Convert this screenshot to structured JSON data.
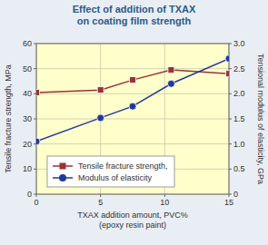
{
  "chart_data": {
    "type": "line",
    "title": "Effect of addition of TXAX\non coating film strength",
    "xlabel": "TXAX addition amount, PVC%\n(epoxy resin paint)",
    "ylabel": "Tensile fracture strength, MPa",
    "y2label": "Tensional modulus of elasticity, GPa",
    "x": [
      0,
      5,
      7.5,
      10.5,
      15
    ],
    "series": [
      {
        "name": "Tensile fracture strength,",
        "color": "#993333",
        "marker": "square",
        "values": [
          40.5,
          41.5,
          45.5,
          49.5,
          48
        ]
      },
      {
        "name": "Modulus of elasticity",
        "color": "#1f3a9a",
        "marker": "circle",
        "axis": "y2",
        "values": [
          1.05,
          1.52,
          1.75,
          2.2,
          2.7
        ]
      }
    ],
    "xlim": [
      0,
      15
    ],
    "xticks": [
      0,
      5,
      10,
      15
    ],
    "ylim": [
      0,
      60
    ],
    "yticks": [
      0,
      10,
      20,
      30,
      40,
      50,
      60
    ],
    "y2lim": [
      0,
      3
    ],
    "y2ticks": [
      0,
      0.5,
      {
        "value": 1,
        "label": "1.0"
      },
      1.5,
      {
        "value": 2,
        "label": "2.0"
      },
      2.5,
      {
        "value": 3,
        "label": "3.0"
      }
    ],
    "grid": true,
    "legend": "lower left"
  }
}
